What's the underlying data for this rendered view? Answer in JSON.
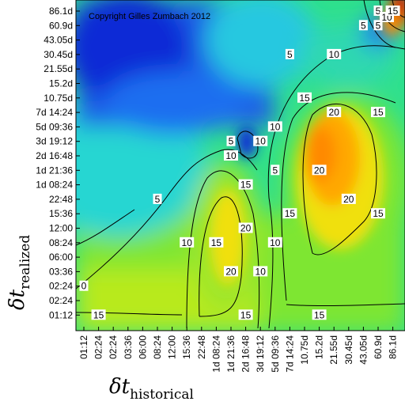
{
  "chart_data": {
    "type": "heatmap",
    "title": "",
    "annotation": "Copyright Gilles Zumbach 2012",
    "xlabel": {
      "symbol": "δt",
      "subscript": "historical"
    },
    "ylabel": {
      "symbol": "δt",
      "subscript": "realized"
    },
    "x_ticks": [
      "01:12",
      "02:24",
      "02:24",
      "03:36",
      "06:00",
      "08:24",
      "12:00",
      "15:36",
      "22:48",
      "1d 08:24",
      "1d 21:36",
      "2d 16:48",
      "3d 19:12",
      "5d 09:36",
      "7d 14:24",
      "10.75d",
      "15.2d",
      "21.55d",
      "30.45d",
      "43.05d",
      "60.9d",
      "86.1d"
    ],
    "y_ticks": [
      "86.1d",
      "60.9d",
      "43.05d",
      "30.45d",
      "21.55d",
      "15.2d",
      "10.75d",
      "7d 14:24",
      "5d 09:36",
      "3d 19:12",
      "2d 16:48",
      "1d 21:36",
      "1d 08:24",
      "22:48",
      "15:36",
      "12:00",
      "08:24",
      "06:00",
      "03:36",
      "02:24",
      "02:24",
      "01:12"
    ],
    "colorscale": [
      "#0a2cd6",
      "#1e6ef0",
      "#2aa8f2",
      "#27d6d2",
      "#2fe08c",
      "#6ee62a",
      "#c8ea1a",
      "#f0e010",
      "#ffb000",
      "#ff6000",
      "#d81000"
    ],
    "contour_levels": [
      0,
      5,
      10,
      15,
      20
    ],
    "contour_labels": [
      {
        "text": "5",
        "x": "60.9d",
        "y": "86.1d"
      },
      {
        "text": "10",
        "x": "60.9d",
        "y": "86.1d"
      },
      {
        "text": "15",
        "x": "86.1d",
        "y": "86.1d"
      },
      {
        "text": "5",
        "x": "43.05d",
        "y": "60.9d"
      },
      {
        "text": "5",
        "x": "60.9d",
        "y": "60.9d"
      },
      {
        "text": "10",
        "x": "21.55d",
        "y": "30.45d"
      },
      {
        "text": "5",
        "x": "7d 14:24",
        "y": "30.45d"
      },
      {
        "text": "15",
        "x": "10.75d",
        "y": "10.75d"
      },
      {
        "text": "20",
        "x": "21.55d",
        "y": "7d 14:24"
      },
      {
        "text": "15",
        "x": "60.9d",
        "y": "7d 14:24"
      },
      {
        "text": "10",
        "x": "5d 09:36",
        "y": "5d 09:36"
      },
      {
        "text": "5",
        "x": "1d 21:36",
        "y": "3d 19:12"
      },
      {
        "text": "10",
        "x": "3d 19:12",
        "y": "3d 19:12"
      },
      {
        "text": "10",
        "x": "1d 21:36",
        "y": "2d 16:48"
      },
      {
        "text": "5",
        "x": "5d 09:36",
        "y": "1d 21:36"
      },
      {
        "text": "20",
        "x": "15.2d",
        "y": "1d 21:36"
      },
      {
        "text": "15",
        "x": "2d 16:48",
        "y": "1d 08:24"
      },
      {
        "text": "5",
        "x": "08:24",
        "y": "22:48"
      },
      {
        "text": "20",
        "x": "30.45d",
        "y": "22:48"
      },
      {
        "text": "15",
        "x": "7d 14:24",
        "y": "15:36"
      },
      {
        "text": "15",
        "x": "60.9d",
        "y": "15:36"
      },
      {
        "text": "20",
        "x": "2d 16:48",
        "y": "12:00"
      },
      {
        "text": "10",
        "x": "5d 09:36",
        "y": "08:24"
      },
      {
        "text": "10",
        "x": "15:36",
        "y": "08:24"
      },
      {
        "text": "15",
        "x": "1d 08:24",
        "y": "08:24"
      },
      {
        "text": "20",
        "x": "1d 21:36",
        "y": "03:36"
      },
      {
        "text": "10",
        "x": "3d 19:12",
        "y": "03:36"
      },
      {
        "text": "0",
        "x": "01:12",
        "y": "02:24"
      },
      {
        "text": "15",
        "x": "02:24",
        "y": "01:12"
      },
      {
        "text": "15",
        "x": "2d 16:48",
        "y": "01:12"
      },
      {
        "text": "15",
        "x": "15.2d",
        "y": "01:12"
      }
    ],
    "grid": false
  }
}
